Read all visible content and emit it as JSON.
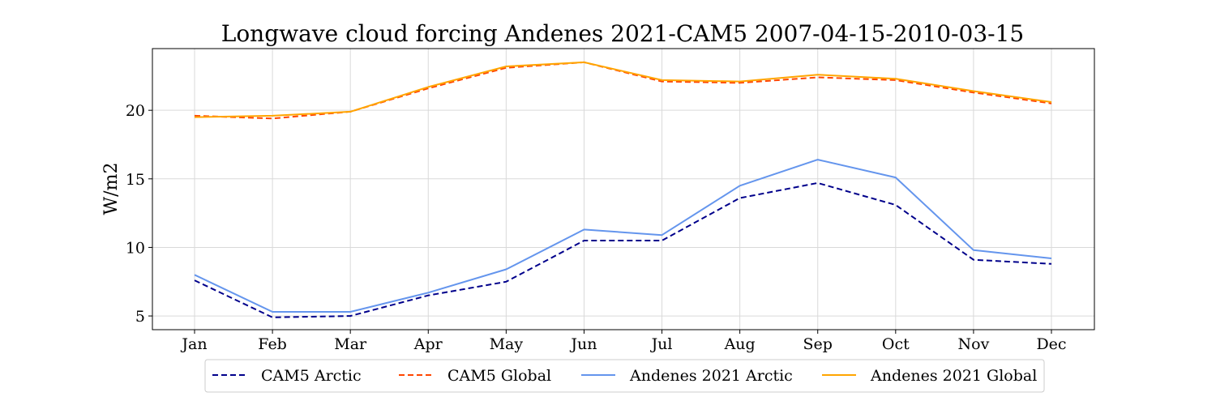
{
  "chart_data": {
    "type": "line",
    "title": "Longwave cloud forcing Andenes 2021-CAM5 2007-04-15-2010-03-15",
    "xlabel": "",
    "ylabel": "W/m2",
    "categories": [
      "Jan",
      "Feb",
      "Mar",
      "Apr",
      "May",
      "Jun",
      "Jul",
      "Aug",
      "Sep",
      "Oct",
      "Nov",
      "Dec"
    ],
    "ylim": [
      4,
      24.5
    ],
    "yticks": [
      5,
      10,
      15,
      20
    ],
    "grid": true,
    "legend_position": "bottom",
    "series": [
      {
        "name": "CAM5 Arctic",
        "color": "#00008b",
        "dash": "dashed",
        "values": [
          7.6,
          4.9,
          5.0,
          6.5,
          7.5,
          10.5,
          10.5,
          13.6,
          14.7,
          13.1,
          9.1,
          8.8
        ]
      },
      {
        "name": "CAM5 Global",
        "color": "#ff4500",
        "dash": "dashed",
        "values": [
          19.6,
          19.4,
          19.9,
          21.6,
          23.1,
          23.5,
          22.1,
          22.0,
          22.4,
          22.2,
          21.3,
          20.5
        ]
      },
      {
        "name": "Andenes 2021 Arctic",
        "color": "#6495ed",
        "dash": "solid",
        "values": [
          8.0,
          5.3,
          5.3,
          6.7,
          8.4,
          11.3,
          10.9,
          14.5,
          16.4,
          15.1,
          9.8,
          9.2
        ]
      },
      {
        "name": "Andenes 2021 Global",
        "color": "#ffa500",
        "dash": "solid",
        "values": [
          19.5,
          19.6,
          19.9,
          21.7,
          23.2,
          23.5,
          22.2,
          22.1,
          22.6,
          22.3,
          21.4,
          20.6
        ]
      }
    ]
  }
}
